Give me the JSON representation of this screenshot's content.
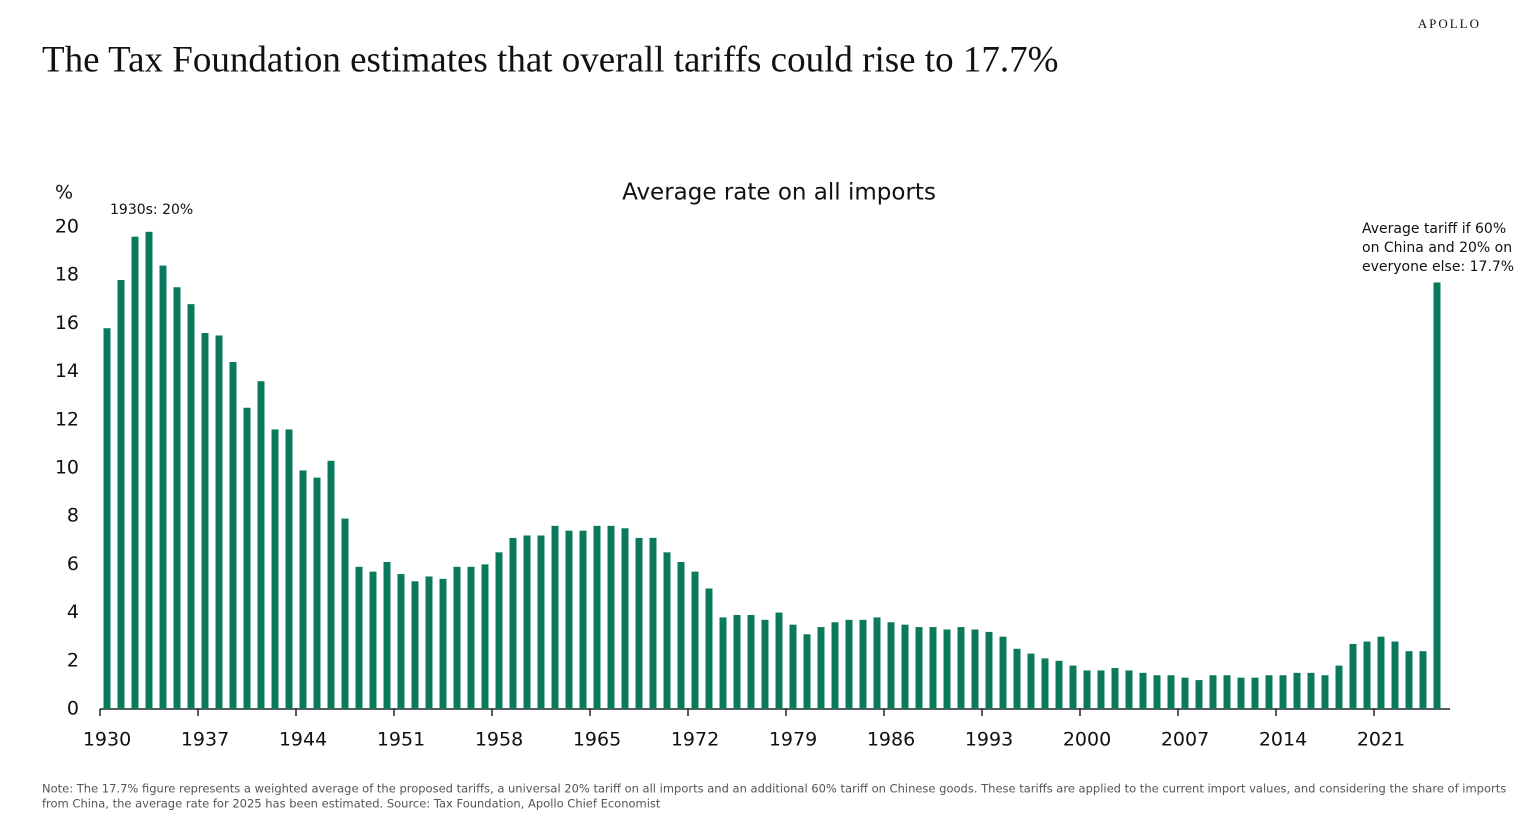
{
  "brand": "APOLLO",
  "chart_data": {
    "type": "bar",
    "title": "The Tax Foundation estimates that overall tariffs could rise to 17.7%",
    "subtitle": "Average rate on all imports",
    "y_label": "%",
    "annotation_left": "1930s: 20%",
    "annotation_right": [
      "Average tariff if 60%",
      "on China and 20% on",
      "everyone else: 17.7%"
    ],
    "note": [
      "Note: The 17.7% figure represents a weighted average of the proposed tariffs, a universal 20% tariff on all imports and an additional 60% tariff on Chinese goods. These tariffs are applied to the current import values, and considering the share of imports",
      "from China, the average rate for 2025 has been estimated. Source: Tax Foundation, Apollo Chief Economist"
    ],
    "color": "#0b7a5c",
    "categories": [
      "1930",
      null,
      null,
      null,
      null,
      null,
      null,
      "1937",
      null,
      null,
      null,
      null,
      null,
      null,
      "1944",
      null,
      null,
      null,
      null,
      null,
      null,
      "1951",
      null,
      null,
      null,
      null,
      null,
      null,
      "1958",
      null,
      null,
      null,
      null,
      null,
      null,
      "1965",
      null,
      null,
      null,
      null,
      null,
      null,
      "1972",
      null,
      null,
      null,
      null,
      null,
      null,
      "1979",
      null,
      null,
      null,
      null,
      null,
      null,
      "1986",
      null,
      null,
      null,
      null,
      null,
      null,
      "1993",
      null,
      null,
      null,
      null,
      null,
      null,
      "2000",
      null,
      null,
      null,
      null,
      null,
      null,
      "2007",
      null,
      null,
      null,
      null,
      null,
      null,
      "2014",
      null,
      null,
      null,
      null,
      null,
      null,
      "2021",
      null,
      null,
      null,
      null
    ],
    "values": [
      15.8,
      17.8,
      19.6,
      19.8,
      18.4,
      17.5,
      16.8,
      15.6,
      15.5,
      14.4,
      12.5,
      13.6,
      11.6,
      11.6,
      9.9,
      9.6,
      10.3,
      7.9,
      5.9,
      5.7,
      6.1,
      5.6,
      5.3,
      5.5,
      5.4,
      5.9,
      5.9,
      6.0,
      6.5,
      7.1,
      7.2,
      7.2,
      7.6,
      7.4,
      7.4,
      7.6,
      7.6,
      7.5,
      7.1,
      7.1,
      6.5,
      6.1,
      5.7,
      5.0,
      3.8,
      3.9,
      3.9,
      3.7,
      4.0,
      3.5,
      3.1,
      3.4,
      3.6,
      3.7,
      3.7,
      3.8,
      3.6,
      3.5,
      3.4,
      3.4,
      3.3,
      3.4,
      3.3,
      3.2,
      3.0,
      2.5,
      2.3,
      2.1,
      2.0,
      1.8,
      1.6,
      1.6,
      1.7,
      1.6,
      1.5,
      1.4,
      1.4,
      1.3,
      1.2,
      1.4,
      1.4,
      1.3,
      1.3,
      1.4,
      1.4,
      1.5,
      1.5,
      1.4,
      1.8,
      2.7,
      2.8,
      3.0,
      2.8,
      2.4,
      2.4,
      17.7
    ],
    "ylim": [
      0,
      20
    ],
    "yticks": [
      0,
      2,
      4,
      6,
      8,
      10,
      12,
      14,
      16,
      18,
      20
    ],
    "grid": false
  }
}
